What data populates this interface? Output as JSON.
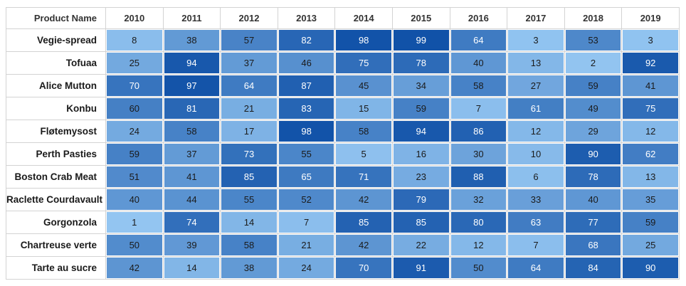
{
  "chart_data": {
    "type": "heatmap",
    "title": "",
    "corner_header": "Product Name",
    "x_labels": [
      "2010",
      "2011",
      "2012",
      "2013",
      "2014",
      "2015",
      "2016",
      "2017",
      "2018",
      "2019"
    ],
    "y_labels": [
      "Vegie-spread",
      "Tofuaa",
      "Alice Mutton",
      "Konbu",
      "Fløtemysost",
      "Perth Pasties",
      "Boston Crab Meat",
      "Raclette Courdavault",
      "Gorgonzola",
      "Chartreuse verte",
      "Tarte au sucre"
    ],
    "values": [
      [
        8,
        38,
        57,
        82,
        98,
        99,
        64,
        3,
        53,
        3
      ],
      [
        25,
        94,
        37,
        46,
        75,
        78,
        40,
        13,
        2,
        92
      ],
      [
        70,
        97,
        64,
        87,
        45,
        34,
        58,
        27,
        59,
        41
      ],
      [
        60,
        81,
        21,
        83,
        15,
        59,
        7,
        61,
        49,
        75
      ],
      [
        24,
        58,
        17,
        98,
        58,
        94,
        86,
        12,
        29,
        12
      ],
      [
        59,
        37,
        73,
        55,
        5,
        16,
        30,
        10,
        90,
        62
      ],
      [
        51,
        41,
        85,
        65,
        71,
        23,
        88,
        6,
        78,
        13
      ],
      [
        40,
        44,
        55,
        52,
        42,
        79,
        32,
        33,
        40,
        35
      ],
      [
        1,
        74,
        14,
        7,
        85,
        85,
        80,
        63,
        77,
        59
      ],
      [
        50,
        39,
        58,
        21,
        42,
        22,
        12,
        7,
        68,
        25
      ],
      [
        42,
        14,
        38,
        24,
        70,
        91,
        50,
        64,
        84,
        90
      ]
    ],
    "color_scale": {
      "low_value": 1,
      "high_value": 99,
      "low_color": "#93C5F1",
      "high_color": "#1152A8",
      "dark_text_color": "#1b1b1b",
      "light_text_color": "#ffffff",
      "light_text_above_value": 60
    },
    "grid_line_color": "#d3d3d3",
    "legend": "none"
  }
}
